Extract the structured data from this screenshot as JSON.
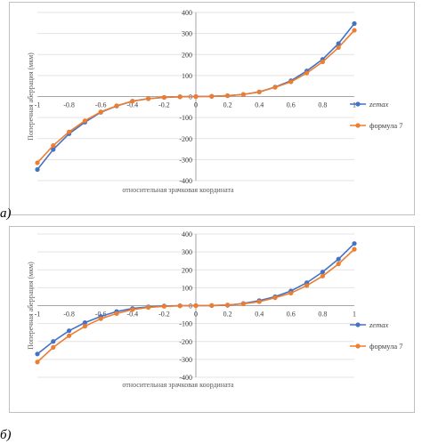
{
  "chart_data": [
    {
      "type": "line",
      "panel_label": "а)",
      "xlabel": "относительная зрачковая координата",
      "ylabel": "Поперечная аберрация (мкм)",
      "xlim": [
        -1,
        1
      ],
      "ylim": [
        -400,
        400
      ],
      "x_ticks": [
        "-1",
        "-0.8",
        "-0.6",
        "-0.4",
        "-0.2",
        "0",
        "0.2",
        "0.4",
        "0.6",
        "0.8",
        "1"
      ],
      "y_ticks": [
        "400",
        "300",
        "200",
        "100",
        "0",
        "-100",
        "-200",
        "-300",
        "-400"
      ],
      "x": [
        -1,
        -0.9,
        -0.8,
        -0.7,
        -0.6,
        -0.5,
        -0.4,
        -0.3,
        -0.2,
        -0.1,
        0,
        0.1,
        0.2,
        0.3,
        0.4,
        0.5,
        0.6,
        0.7,
        0.8,
        0.9,
        1
      ],
      "legend_position": "right",
      "series": [
        {
          "name": "zemax",
          "color": "#4472c4",
          "values": [
            -347,
            -252,
            -177,
            -122,
            -75,
            -45,
            -22,
            -10,
            -4,
            -1,
            0,
            1,
            4,
            10,
            22,
            45,
            75,
            122,
            177,
            252,
            347
          ]
        },
        {
          "name": "формула 7",
          "color": "#ed7d31",
          "values": [
            -315,
            -233,
            -168,
            -115,
            -73,
            -44,
            -22,
            -10,
            -4,
            -1,
            0,
            1,
            4,
            10,
            22,
            44,
            70,
            112,
            165,
            233,
            315
          ]
        }
      ]
    },
    {
      "type": "line",
      "panel_label": "б)",
      "xlabel": "относительная зрачковая координата",
      "ylabel": "Поперечная аберрация (мкм)",
      "xlim": [
        -1,
        1
      ],
      "ylim": [
        -400,
        400
      ],
      "x_ticks": [
        "-1",
        "-0.8",
        "-0.6",
        "-0.4",
        "-0.2",
        "0",
        "0.2",
        "0.4",
        "0.6",
        "0.8",
        "1"
      ],
      "y_ticks": [
        "400",
        "300",
        "200",
        "100",
        "0",
        "-100",
        "-200",
        "-300",
        "-400"
      ],
      "x": [
        -1,
        -0.9,
        -0.8,
        -0.7,
        -0.6,
        -0.5,
        -0.4,
        -0.3,
        -0.2,
        -0.1,
        0,
        0.1,
        0.2,
        0.3,
        0.4,
        0.5,
        0.6,
        0.7,
        0.8,
        0.9,
        1
      ],
      "legend_position": "right",
      "series": [
        {
          "name": "zemax",
          "color": "#4472c4",
          "values": [
            -270,
            -200,
            -140,
            -95,
            -60,
            -33,
            -16,
            -7,
            -2,
            -0.5,
            0,
            0.5,
            2,
            12,
            28,
            50,
            82,
            128,
            188,
            260,
            347
          ]
        },
        {
          "name": "формула 7",
          "color": "#ed7d31",
          "values": [
            -315,
            -233,
            -168,
            -115,
            -73,
            -44,
            -22,
            -10,
            -4,
            -1,
            0,
            1,
            4,
            10,
            22,
            44,
            70,
            112,
            165,
            233,
            315
          ]
        }
      ]
    }
  ]
}
